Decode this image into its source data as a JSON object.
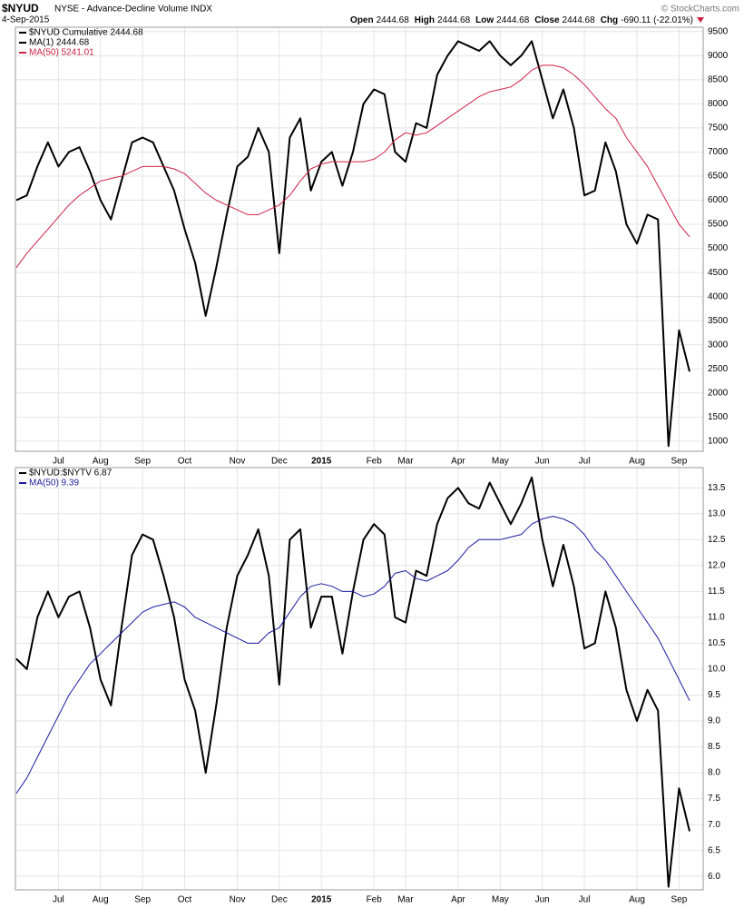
{
  "header": {
    "symbol": "$NYUD",
    "name": "NYSE - Advance-Decline Volume INDX",
    "date": "4-Sep-2015",
    "copyright": "© StockCharts.com",
    "quote": [
      {
        "label": "Open",
        "value": "2444.68"
      },
      {
        "label": "High",
        "value": "2444.68"
      },
      {
        "label": "Low",
        "value": "2444.68"
      },
      {
        "label": "Close",
        "value": "2444.68"
      },
      {
        "label": "Chg",
        "value": "-690.11 (-22.01%)"
      }
    ]
  },
  "chart_data": [
    {
      "type": "line",
      "legend": "top-left",
      "grid": true,
      "annotations": [
        "MA(1) 2444.68"
      ],
      "categories": [
        null,
        null,
        null,
        null,
        "Jul",
        null,
        null,
        null,
        "Aug",
        null,
        null,
        null,
        "Sep",
        null,
        null,
        null,
        "Oct",
        null,
        null,
        null,
        null,
        "Nov",
        null,
        null,
        null,
        "Dec",
        null,
        null,
        null,
        "2015",
        null,
        null,
        null,
        null,
        "Feb",
        null,
        null,
        "Mar",
        null,
        null,
        null,
        null,
        "Apr",
        null,
        null,
        null,
        "May",
        null,
        null,
        null,
        "Jun",
        null,
        null,
        null,
        "Jul",
        null,
        null,
        null,
        null,
        "Aug",
        null,
        null,
        null,
        "Sep",
        null
      ],
      "ylim": [
        790,
        9590
      ],
      "yticks": [
        1000,
        1500,
        2000,
        2500,
        3000,
        3500,
        4000,
        4500,
        5000,
        5500,
        6000,
        6500,
        7000,
        7500,
        8000,
        8500,
        9000,
        9500
      ],
      "series": [
        {
          "name": "$NYUD Cumulative 2444.68",
          "color": "#000000",
          "width": 2,
          "values": [
            6000,
            6100,
            6700,
            7200,
            6700,
            7000,
            7100,
            6600,
            6000,
            5600,
            6400,
            7200,
            7300,
            7200,
            6700,
            6200,
            5400,
            4700,
            3600,
            4600,
            5700,
            6700,
            6900,
            7500,
            7000,
            4900,
            7300,
            7700,
            6200,
            6800,
            7000,
            6300,
            7000,
            8000,
            8300,
            8200,
            7000,
            6800,
            7600,
            7500,
            8600,
            9000,
            9300,
            9200,
            9100,
            9300,
            9000,
            8800,
            9000,
            9300,
            8500,
            7700,
            8300,
            7500,
            6100,
            6200,
            7200,
            6600,
            5500,
            5100,
            5700,
            5600,
            900,
            3300,
            2444.68
          ]
        },
        {
          "name": "MA(50) 5241.01",
          "color": "#cc2244",
          "width": 1,
          "values": [
            4600,
            4900,
            5150,
            5400,
            5650,
            5900,
            6100,
            6250,
            6400,
            6450,
            6500,
            6600,
            6700,
            6700,
            6700,
            6650,
            6550,
            6350,
            6150,
            6000,
            5900,
            5800,
            5700,
            5700,
            5800,
            5900,
            6100,
            6400,
            6650,
            6750,
            6800,
            6800,
            6800,
            6800,
            6850,
            7000,
            7250,
            7400,
            7350,
            7400,
            7550,
            7700,
            7850,
            8000,
            8150,
            8250,
            8300,
            8350,
            8500,
            8700,
            8800,
            8800,
            8750,
            8600,
            8400,
            8150,
            7900,
            7700,
            7300,
            7000,
            6700,
            6300,
            5900,
            5500,
            5241.01
          ]
        }
      ]
    },
    {
      "type": "line",
      "legend": "top-left",
      "grid": true,
      "categories": [
        null,
        null,
        null,
        null,
        "Jul",
        null,
        null,
        null,
        "Aug",
        null,
        null,
        null,
        "Sep",
        null,
        null,
        null,
        "Oct",
        null,
        null,
        null,
        null,
        "Nov",
        null,
        null,
        null,
        "Dec",
        null,
        null,
        null,
        "2015",
        null,
        null,
        null,
        null,
        "Feb",
        null,
        null,
        "Mar",
        null,
        null,
        null,
        null,
        "Apr",
        null,
        null,
        null,
        "May",
        null,
        null,
        null,
        "Jun",
        null,
        null,
        null,
        "Jul",
        null,
        null,
        null,
        null,
        "Aug",
        null,
        null,
        null,
        "Sep",
        null
      ],
      "ylim": [
        5.74,
        13.89
      ],
      "yticks": [
        {
          "value": 6,
          "label": "6.0"
        },
        6.5,
        {
          "value": 7,
          "label": "7.0"
        },
        7.5,
        {
          "value": 8,
          "label": "8.0"
        },
        8.5,
        {
          "value": 9,
          "label": "9.0"
        },
        9.5,
        {
          "value": 10,
          "label": "10.0"
        },
        10.5,
        {
          "value": 11,
          "label": "11.0"
        },
        11.5,
        {
          "value": 12,
          "label": "12.0"
        },
        12.5,
        {
          "value": 13,
          "label": "13.0"
        },
        13.5
      ],
      "series": [
        {
          "name": "$NYUD:$NYTV 6.87",
          "color": "#000000",
          "width": 2,
          "values": [
            10.2,
            10.0,
            11.0,
            11.5,
            11.0,
            11.4,
            11.5,
            10.8,
            9.8,
            9.3,
            10.8,
            12.2,
            12.6,
            12.5,
            11.8,
            11.0,
            9.8,
            9.2,
            8.0,
            9.3,
            10.8,
            11.8,
            12.2,
            12.7,
            11.8,
            9.7,
            12.5,
            12.7,
            10.8,
            11.4,
            11.4,
            10.3,
            11.5,
            12.5,
            12.8,
            12.6,
            11.0,
            10.9,
            11.9,
            11.8,
            12.8,
            13.3,
            13.5,
            13.2,
            13.1,
            13.6,
            13.2,
            12.8,
            13.2,
            13.7,
            12.5,
            11.6,
            12.4,
            11.6,
            10.4,
            10.5,
            11.5,
            10.8,
            9.6,
            9.0,
            9.6,
            9.2,
            5.8,
            7.7,
            6.87
          ]
        },
        {
          "name": "MA(50) 9.39",
          "color": "#1a1aa0",
          "width": 1,
          "values": [
            7.6,
            7.9,
            8.3,
            8.7,
            9.1,
            9.5,
            9.8,
            10.1,
            10.3,
            10.5,
            10.7,
            10.9,
            11.1,
            11.2,
            11.25,
            11.3,
            11.2,
            11.0,
            10.9,
            10.8,
            10.7,
            10.6,
            10.5,
            10.5,
            10.7,
            10.8,
            11.1,
            11.4,
            11.6,
            11.65,
            11.6,
            11.5,
            11.5,
            11.4,
            11.45,
            11.6,
            11.85,
            11.9,
            11.75,
            11.7,
            11.8,
            11.9,
            12.1,
            12.35,
            12.5,
            12.5,
            12.5,
            12.55,
            12.6,
            12.8,
            12.9,
            12.95,
            12.9,
            12.8,
            12.6,
            12.3,
            12.1,
            11.8,
            11.5,
            11.2,
            10.9,
            10.6,
            10.2,
            9.8,
            9.39
          ]
        }
      ]
    }
  ]
}
